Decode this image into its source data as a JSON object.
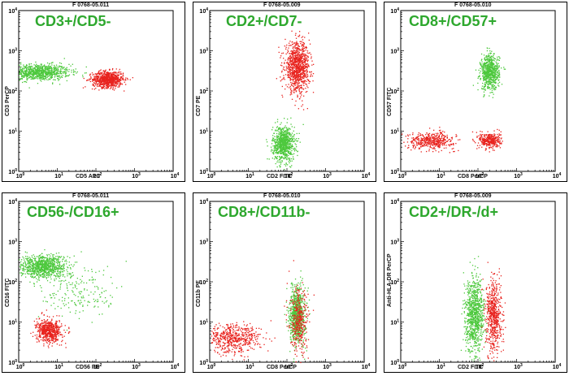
{
  "chart_data": [
    {
      "type": "scatter",
      "file_id": "F 0768-05.011",
      "title": "CD3+/CD5-",
      "xlabel": "CD5 APC",
      "ylabel": "CD3 PerCP",
      "xlim": [
        1,
        10000
      ],
      "ylim": [
        1,
        10000
      ],
      "scale": "log",
      "tick_labels": [
        "10^0",
        "10^1",
        "10^2",
        "10^3",
        "10^4"
      ],
      "series": [
        {
          "color": "#4cc83c",
          "clusters": [
            {
              "x": 3,
              "y": 300,
              "count": 900,
              "sx": 0.42,
              "sy": 0.1
            }
          ]
        },
        {
          "color": "#e8231e",
          "clusters": [
            {
              "x": 200,
              "y": 200,
              "count": 800,
              "sx": 0.2,
              "sy": 0.1
            }
          ]
        }
      ]
    },
    {
      "type": "scatter",
      "file_id": "F 0768-05.009",
      "title": "CD2+/CD7-",
      "xlabel": "CD2 FITC",
      "ylabel": "CD7 PE",
      "xlim": [
        1,
        10000
      ],
      "ylim": [
        1,
        10000
      ],
      "scale": "log",
      "tick_labels": [
        "10^0",
        "10^1",
        "10^2",
        "10^3",
        "10^4"
      ],
      "series": [
        {
          "color": "#4cc83c",
          "clusters": [
            {
              "x": 80,
              "y": 5,
              "count": 800,
              "sx": 0.14,
              "sy": 0.22
            }
          ]
        },
        {
          "color": "#e8231e",
          "clusters": [
            {
              "x": 180,
              "y": 400,
              "count": 1000,
              "sx": 0.16,
              "sy": 0.3
            }
          ]
        }
      ]
    },
    {
      "type": "scatter",
      "file_id": "F 0768-05.010",
      "title": "CD8+/CD57+",
      "xlabel": "CD8 PerCP",
      "ylabel": "CD57 FITC",
      "xlim": [
        1,
        10000
      ],
      "ylim": [
        1,
        10000
      ],
      "scale": "log",
      "tick_labels": [
        "10^0",
        "10^1",
        "10^2",
        "10^3",
        "10^4"
      ],
      "series": [
        {
          "color": "#4cc83c",
          "clusters": [
            {
              "x": 200,
              "y": 300,
              "count": 700,
              "sx": 0.12,
              "sy": 0.22
            }
          ]
        },
        {
          "color": "#e8231e",
          "clusters": [
            {
              "x": 6,
              "y": 6,
              "count": 450,
              "sx": 0.3,
              "sy": 0.1
            },
            {
              "x": 200,
              "y": 6,
              "count": 350,
              "sx": 0.14,
              "sy": 0.1
            }
          ]
        }
      ]
    },
    {
      "type": "scatter",
      "file_id": "F 0768-05.011",
      "title": "CD56-/CD16+",
      "xlabel": "CD56 PE",
      "ylabel": "CD16 FITC",
      "xlim": [
        1,
        10000
      ],
      "ylim": [
        1,
        10000
      ],
      "scale": "log",
      "tick_labels": [
        "10^0",
        "10^1",
        "10^2",
        "10^3",
        "10^4"
      ],
      "series": [
        {
          "color": "#4cc83c",
          "clusters": [
            {
              "x": 4,
              "y": 250,
              "count": 900,
              "sx": 0.3,
              "sy": 0.14
            },
            {
              "x": 40,
              "y": 60,
              "count": 200,
              "sx": 0.5,
              "sy": 0.35
            }
          ]
        },
        {
          "color": "#e8231e",
          "clusters": [
            {
              "x": 6,
              "y": 6,
              "count": 600,
              "sx": 0.16,
              "sy": 0.14
            }
          ]
        }
      ]
    },
    {
      "type": "scatter",
      "file_id": "F 0768-05.010",
      "title": "CD8+/CD11b-",
      "xlabel": "CD8 PerCP",
      "ylabel": "CD11b PE",
      "xlim": [
        1,
        10000
      ],
      "ylim": [
        1,
        10000
      ],
      "scale": "log",
      "tick_labels": [
        "10^0",
        "10^1",
        "10^2",
        "10^3",
        "10^4"
      ],
      "series": [
        {
          "color": "#4cc83c",
          "clusters": [
            {
              "x": 180,
              "y": 15,
              "count": 800,
              "sx": 0.1,
              "sy": 0.35
            }
          ]
        },
        {
          "color": "#e8231e",
          "clusters": [
            {
              "x": 4,
              "y": 4,
              "count": 550,
              "sx": 0.35,
              "sy": 0.18
            },
            {
              "x": 200,
              "y": 10,
              "count": 350,
              "sx": 0.12,
              "sy": 0.4
            }
          ]
        }
      ]
    },
    {
      "type": "scatter",
      "file_id": "F 0768-05.009",
      "title": "CD2+/DR-/d+",
      "xlabel": "CD2 FITC",
      "ylabel": "Anti-HLA-DR PerCP",
      "xlim": [
        1,
        10000
      ],
      "ylim": [
        1,
        10000
      ],
      "scale": "log",
      "tick_labels": [
        "10^0",
        "10^1",
        "10^2",
        "10^3",
        "10^4"
      ],
      "series": [
        {
          "color": "#4cc83c",
          "clusters": [
            {
              "x": 80,
              "y": 15,
              "count": 900,
              "sx": 0.12,
              "sy": 0.45
            }
          ]
        },
        {
          "color": "#e8231e",
          "clusters": [
            {
              "x": 250,
              "y": 15,
              "count": 600,
              "sx": 0.1,
              "sy": 0.45
            }
          ]
        }
      ]
    }
  ]
}
